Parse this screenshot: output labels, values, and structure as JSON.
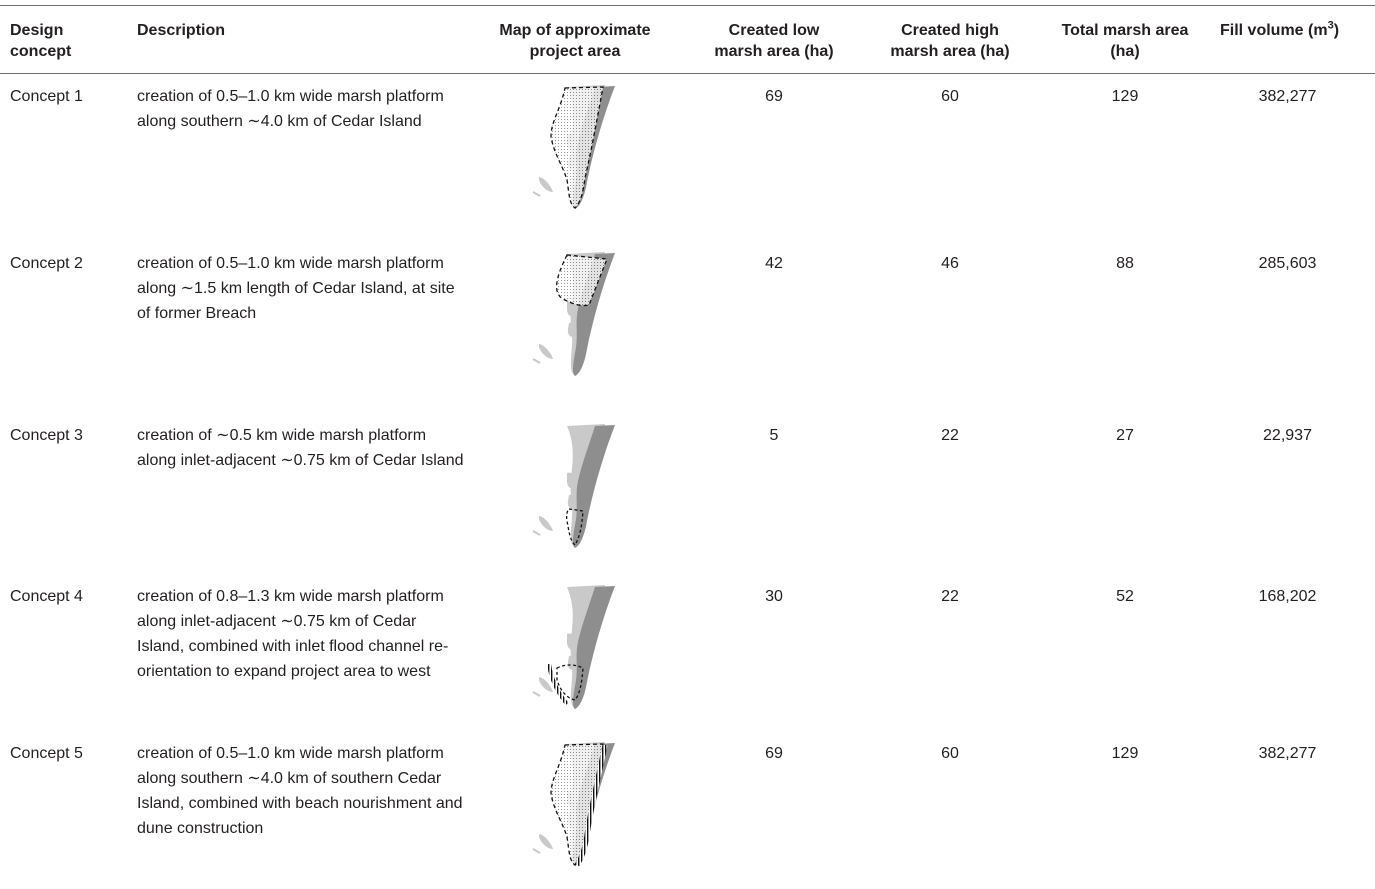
{
  "headers": {
    "design_concept": [
      "Design",
      "concept"
    ],
    "description": "Description",
    "map": [
      "Map of approximate",
      "project area"
    ],
    "low_marsh": [
      "Created low",
      "marsh area (ha)"
    ],
    "high_marsh": [
      "Created high",
      "marsh area (ha)"
    ],
    "total_marsh": [
      "Total marsh area",
      "(ha)"
    ],
    "fill_volume": "Fill volume (m",
    "fill_volume_sup": "3",
    "fill_volume_close": ")"
  },
  "rows": [
    {
      "concept": "Concept 1",
      "description": "creation of 0.5–1.0 km wide marsh platform along southern ∼4.0 km of Cedar Island",
      "low": "69",
      "high": "60",
      "total": "129",
      "fill": "382,277",
      "map_overlay": "dotted-polygon-southern-4km"
    },
    {
      "concept": "Concept 2",
      "description": "creation of 0.5–1.0 km wide marsh platform along ∼1.5 km length of Cedar Island, at site of former Breach",
      "low": "42",
      "high": "46",
      "total": "88",
      "fill": "285,603",
      "map_overlay": "dotted-polygon-former-breach"
    },
    {
      "concept": "Concept 3",
      "description": "creation of ∼0.5 km wide marsh platform along inlet-adjacent ∼0.75 km of Cedar Island",
      "low": "5",
      "high": "22",
      "total": "27",
      "fill": "22,937",
      "map_overlay": "dashed-polygon-inlet-adjacent"
    },
    {
      "concept": "Concept 4",
      "description": "creation of 0.8–1.3 km wide marsh platform along inlet-adjacent ∼0.75 km of Cedar Island, combined with inlet flood channel re-orientation to expand project area to west",
      "low": "30",
      "high": "22",
      "total": "52",
      "fill": "168,202",
      "map_overlay": "dashed-polygon-with-hatched-channel"
    },
    {
      "concept": "Concept 5",
      "description": "creation of 0.5–1.0 km wide marsh platform along southern ∼4.0 km of southern Cedar Island, combined with beach nourishment and dune construction",
      "low": "69",
      "high": "60",
      "total": "129",
      "fill": "382,277",
      "map_overlay": "dotted-polygon-plus-hatched-beach"
    }
  ],
  "colors": {
    "text": "#231f20",
    "rule": "#6d6e71",
    "island_dark": "#8e8e8e",
    "island_light": "#c9c9c9"
  }
}
